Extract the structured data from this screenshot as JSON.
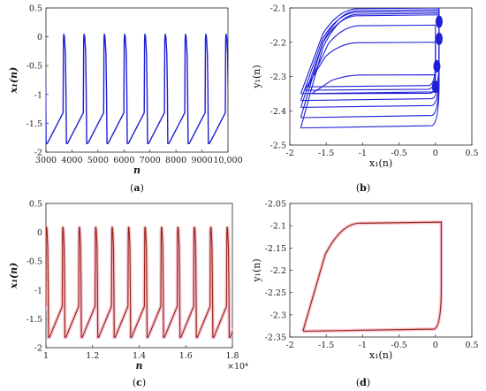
{
  "colors": {
    "blue": "#1f1fd6",
    "red": "#9b2a1a",
    "redGlow": "#f7c8d8",
    "axis": "#222222"
  },
  "chart_data": [
    {
      "id": "a",
      "type": "line",
      "caption": "(a)",
      "xlabel": "n",
      "ylabel": "x₁(n)",
      "xlim": [
        3000,
        10000
      ],
      "ylim": [
        -2,
        0.5
      ],
      "xticks": [
        3000,
        4000,
        5000,
        6000,
        7000,
        8000,
        9000,
        10000
      ],
      "xtick_labels": [
        "3000",
        "4000",
        "5000",
        "6000",
        "7000",
        "8000",
        "9000",
        "10,000"
      ],
      "yticks": [
        -2,
        -1.5,
        -1,
        -0.5,
        0,
        0.5
      ],
      "ytick_labels": [
        "-2",
        "-1.5",
        "-1",
        "-0.5",
        "0",
        "0.5"
      ],
      "series": [
        {
          "color": "blue",
          "period": 780,
          "phase": 3050,
          "peak": 0.05,
          "min": -1.85,
          "description_values": {
            "max_approx": 0.05,
            "min_approx": -1.85
          }
        }
      ]
    },
    {
      "id": "b",
      "type": "line",
      "caption": "(b)",
      "xlabel": "x₁(n)",
      "ylabel": "y₁(n)",
      "xlim": [
        -2,
        0.5
      ],
      "ylim": [
        -2.5,
        -2.1
      ],
      "xticks": [
        -2,
        -1.5,
        -1,
        -0.5,
        0,
        0.5
      ],
      "xtick_labels": [
        "-2",
        "-1.5",
        "-1",
        "-0.5",
        "0",
        "0.5"
      ],
      "yticks": [
        -2.5,
        -2.4,
        -2.3,
        -2.2,
        -2.1
      ],
      "ytick_labels": [
        "-2.5",
        "-2.4",
        "-2.3",
        "-2.2",
        "-2.1"
      ],
      "series": [
        {
          "color": "blue",
          "loops": [
            {
              "left": -1.85,
              "right": 0.05,
              "top": -2.1,
              "bottom": -2.35
            },
            {
              "left": -1.85,
              "right": 0.05,
              "top": -2.11,
              "bottom": -2.37
            },
            {
              "left": -1.85,
              "right": 0.05,
              "top": -2.12,
              "bottom": -2.39
            },
            {
              "left": -1.85,
              "right": 0.05,
              "top": -2.105,
              "bottom": -2.42
            },
            {
              "left": -1.85,
              "right": 0.05,
              "top": -2.115,
              "bottom": -2.45
            },
            {
              "left": -1.8,
              "right": 0.0,
              "top": -2.2,
              "bottom": -2.34
            },
            {
              "left": -1.75,
              "right": 0.0,
              "top": -2.15,
              "bottom": -2.33
            },
            {
              "left": -1.7,
              "right": 0.0,
              "top": -2.295,
              "bottom": -2.35
            }
          ]
        }
      ]
    },
    {
      "id": "c",
      "type": "line",
      "caption": "(c)",
      "xlabel": "n",
      "ylabel": "x₁(n)",
      "xlim": [
        10000,
        18000
      ],
      "ylim": [
        -2,
        0.5
      ],
      "xticks": [
        10000,
        12000,
        14000,
        16000,
        18000
      ],
      "xtick_labels": [
        "1",
        "1.2",
        "1.4",
        "1.6",
        "1.8"
      ],
      "x_multiplier_label": "×10⁴",
      "yticks": [
        -2,
        -1.5,
        -1,
        -0.5,
        0,
        0.5
      ],
      "ytick_labels": [
        "-2",
        "-1.5",
        "-1",
        "-0.5",
        "0",
        "0.5"
      ],
      "series": [
        {
          "color": "red",
          "period": 705,
          "phase": 10150,
          "peak": 0.1,
          "min": -1.82,
          "description_values": {
            "max_approx": 0.1,
            "min_approx": -1.82
          }
        }
      ]
    },
    {
      "id": "d",
      "type": "line",
      "caption": "(d)",
      "xlabel": "x₁(n)",
      "ylabel": "y₁(n)",
      "xlim": [
        -2,
        0.5
      ],
      "ylim": [
        -2.35,
        -2.05
      ],
      "xticks": [
        -2,
        -1.5,
        -1,
        -0.5,
        0,
        0.5
      ],
      "xtick_labels": [
        "-2",
        "-1.5",
        "-1",
        "-0.5",
        "0",
        "0.5"
      ],
      "yticks": [
        -2.35,
        -2.3,
        -2.25,
        -2.2,
        -2.15,
        -2.1,
        -2.05
      ],
      "ytick_labels": [
        "-2.35",
        "-2.3",
        "-2.25",
        "-2.2",
        "-2.15",
        "-2.1",
        "-2.05"
      ],
      "series": [
        {
          "color": "red",
          "loops": [
            {
              "left": -1.82,
              "right": 0.08,
              "top": -2.092,
              "bottom": -2.337
            }
          ]
        }
      ]
    }
  ]
}
